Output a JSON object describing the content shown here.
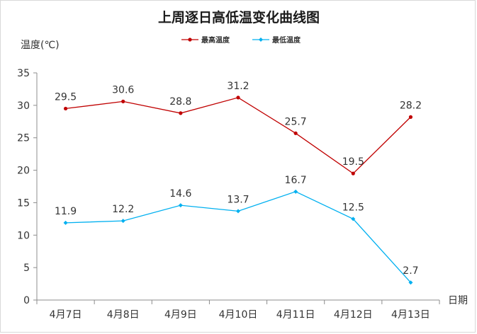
{
  "chart_data": {
    "type": "line",
    "title": "上周逐日高低温变化曲线图",
    "xlabel": "日期",
    "ylabel": "温度(℃)",
    "categories": [
      "4月7日",
      "4月8日",
      "4月9日",
      "4月10日",
      "4月11日",
      "4月12日",
      "4月13日"
    ],
    "ylim": [
      0,
      35
    ],
    "yticks": [
      0,
      5,
      10,
      15,
      20,
      25,
      30,
      35
    ],
    "legend_position": "top-center",
    "grid": false,
    "series": [
      {
        "name": "最高温度",
        "color": "#c00000",
        "marker": "circle",
        "values": [
          29.5,
          30.6,
          28.8,
          31.2,
          25.7,
          19.5,
          28.2
        ]
      },
      {
        "name": "最低温度",
        "color": "#00b0f0",
        "marker": "diamond",
        "values": [
          11.9,
          12.2,
          14.6,
          13.7,
          16.7,
          12.5,
          2.7
        ]
      }
    ]
  }
}
